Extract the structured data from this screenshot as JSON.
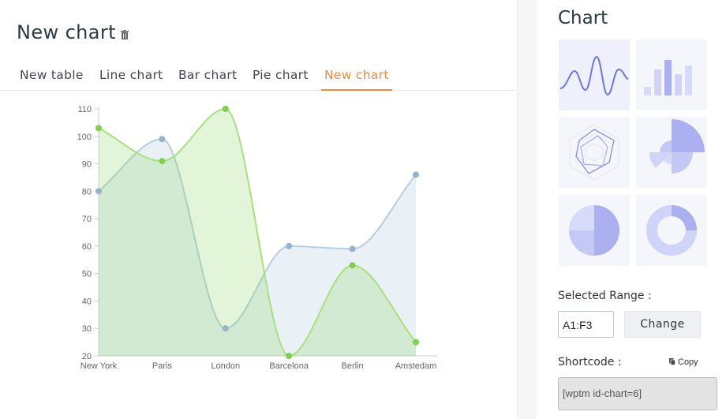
{
  "header": {
    "title": "New chart",
    "delete_icon": "trash-icon"
  },
  "tabs": [
    {
      "label": "New table",
      "active": false
    },
    {
      "label": "Line chart",
      "active": false
    },
    {
      "label": "Bar chart",
      "active": false
    },
    {
      "label": "Pie chart",
      "active": false
    },
    {
      "label": "New chart",
      "active": true
    }
  ],
  "colors": {
    "accent": "#f08a3c",
    "series_blue": "#9fbdd6",
    "series_green": "#7ed04d",
    "thumb_purple": "#aab0f0"
  },
  "chart_data": {
    "type": "area",
    "categories": [
      "New York",
      "Paris",
      "London",
      "Barcelona",
      "Berlin",
      "Amstedam"
    ],
    "series": [
      {
        "values": [
          80,
          99,
          30,
          60,
          59,
          86
        ]
      },
      {
        "values": [
          103,
          91,
          110,
          20,
          53,
          25
        ]
      }
    ],
    "ylim": [
      20,
      110
    ],
    "yticks": [
      20,
      30,
      40,
      50,
      60,
      70,
      80,
      90,
      100,
      110
    ],
    "grid": false
  },
  "sidebar": {
    "title": "Chart",
    "chart_types": [
      "wave-line-chart-icon",
      "bar-chart-icon",
      "radar-chart-icon",
      "polar-area-chart-icon",
      "pie-chart-icon",
      "doughnut-chart-icon"
    ],
    "range_label": "Selected Range :",
    "range_value": "A1:F3",
    "change_label": "Change",
    "shortcode_label": "Shortcode :",
    "copy_label": "Copy",
    "shortcode_value": "[wptm id-chart=6]"
  }
}
